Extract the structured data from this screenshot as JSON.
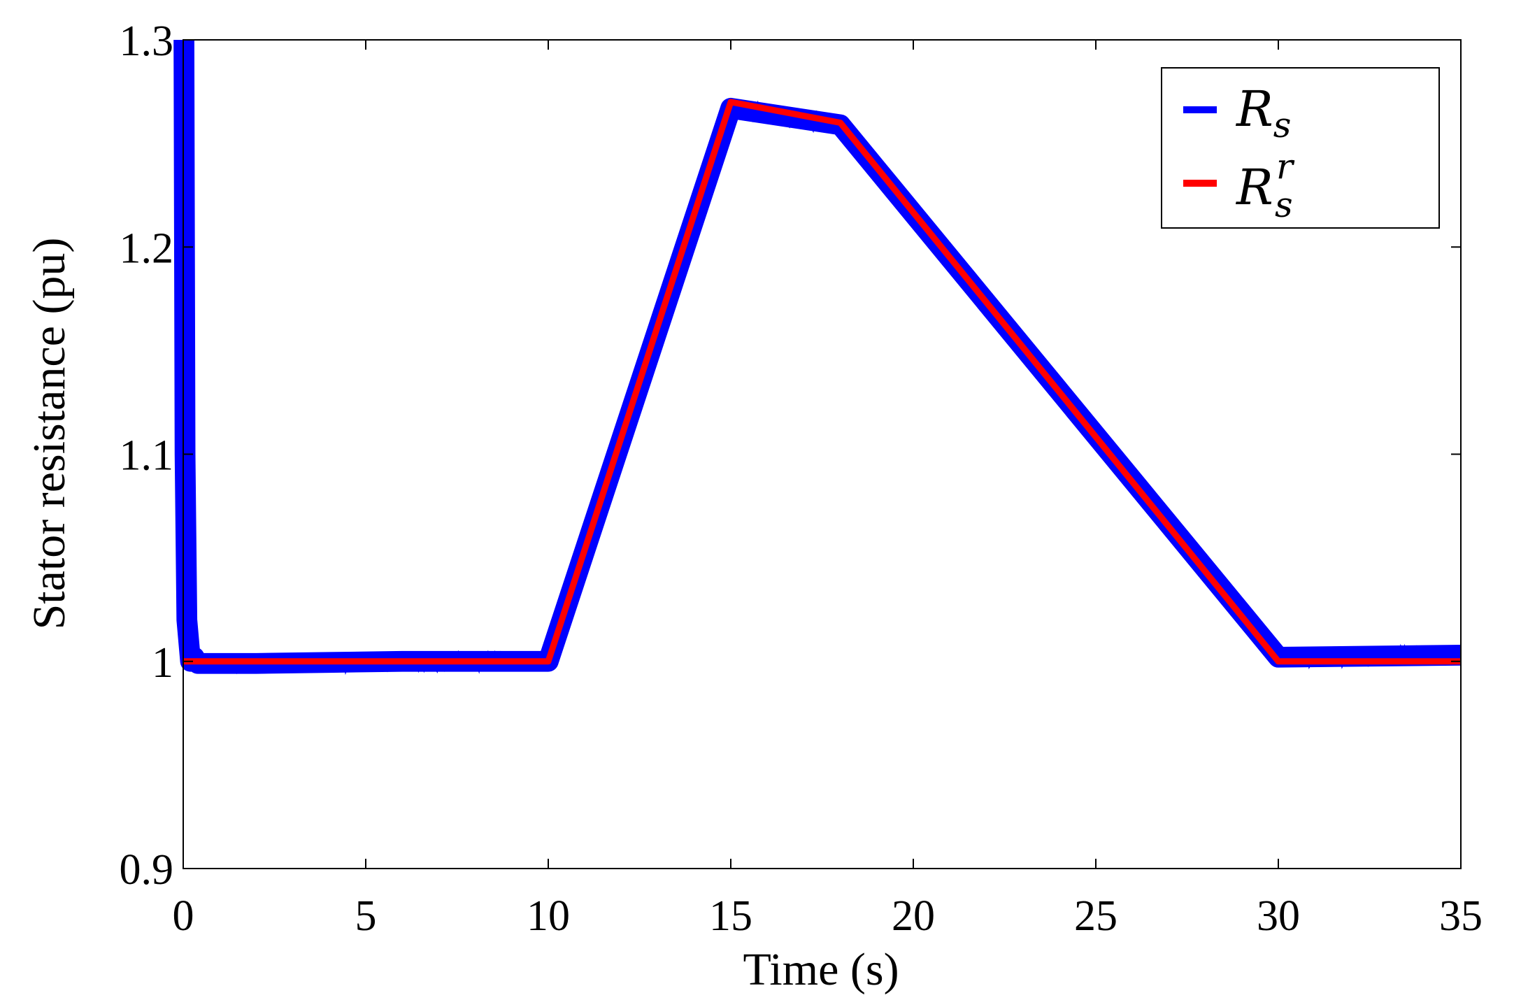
{
  "chart_data": {
    "type": "line",
    "xlabel": "Time (s)",
    "ylabel": "Stator resistance (pu)",
    "xlim": [
      0,
      35
    ],
    "ylim": [
      0.9,
      1.3
    ],
    "xticks": [
      0,
      5,
      10,
      15,
      20,
      25,
      30,
      35
    ],
    "yticks": [
      0.9,
      1.0,
      1.1,
      1.2,
      1.3
    ],
    "xtick_labels": [
      "0",
      "5",
      "10",
      "15",
      "20",
      "25",
      "30",
      "35"
    ],
    "ytick_labels": [
      "0.9",
      "1",
      "1.1",
      "1.2",
      "1.3"
    ],
    "grid": false,
    "legend_position": "top-right",
    "series": [
      {
        "name": "R_s",
        "legend_main": "R",
        "legend_sub": "s",
        "legend_sup": "",
        "color": "#0000ff",
        "x": [
          0.02,
          0.05,
          0.1,
          0.2,
          0.3,
          0.4,
          0.8,
          2,
          4,
          6,
          8,
          9.9,
          10,
          15,
          18,
          30,
          35
        ],
        "y": [
          1.3,
          1.1,
          1.02,
          1.0,
          1.002,
          0.999,
          0.999,
          0.999,
          0.9995,
          1.0,
          1.0,
          1.0,
          1.0,
          1.267,
          1.259,
          1.002,
          1.003
        ],
        "noise_band": 0.004
      },
      {
        "name": "R_s^r",
        "legend_main": "R",
        "legend_sub": "s",
        "legend_sup": "r",
        "color": "#ff0000",
        "x": [
          0,
          10,
          15,
          18,
          30,
          35
        ],
        "y": [
          1.0,
          1.0,
          1.27,
          1.26,
          1.0,
          1.0
        ]
      }
    ]
  }
}
